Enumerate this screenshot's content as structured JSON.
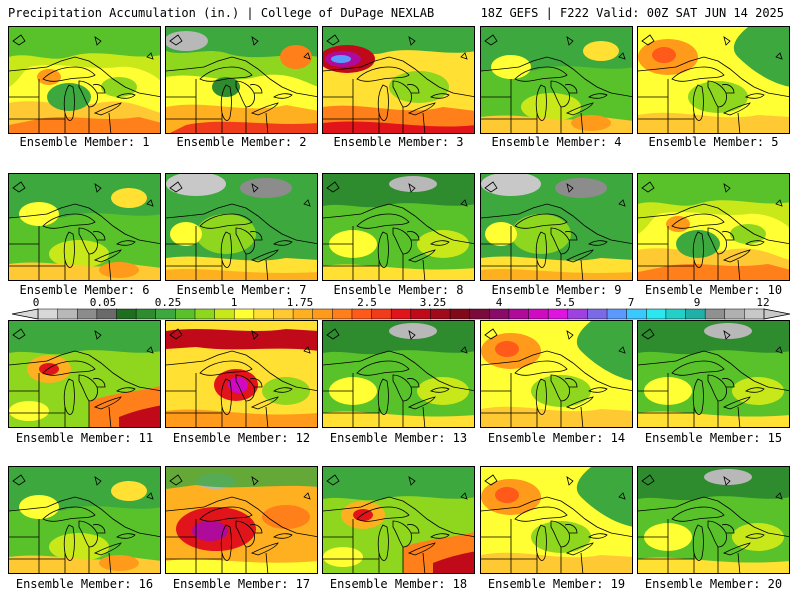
{
  "header": {
    "title_left": "Precipitation Accumulation (in.) | College of DuPage NEXLAB",
    "title_right": "18Z GEFS | F222 Valid: 00Z SAT JUN 14 2025"
  },
  "colorbar": {
    "labels": [
      "0",
      "0.05",
      "0.25",
      "1",
      "1.75",
      "2.5",
      "3.25",
      "4",
      "5.5",
      "7",
      "9",
      "12"
    ],
    "colors": [
      "#d8d8d8",
      "#b8b8b8",
      "#8c8c8c",
      "#6a6a6a",
      "#1f6e1f",
      "#2e8b2e",
      "#3da83d",
      "#59c22b",
      "#8fd61f",
      "#c8e81a",
      "#ffff33",
      "#ffe033",
      "#ffc933",
      "#ffb020",
      "#ff9a1a",
      "#ff7f1a",
      "#ff5a1a",
      "#f03c1a",
      "#e0141a",
      "#c00a1a",
      "#a00a1a",
      "#800a1a",
      "#7a0a3a",
      "#8a0a6a",
      "#b00a9a",
      "#d00ac0",
      "#e014e0",
      "#a040e0",
      "#7a6ae8",
      "#5a9aff",
      "#3ac8ff",
      "#2ae8f0",
      "#22d0c8",
      "#20b0a8",
      "#909090",
      "#b0b0b0",
      "#c8c8c8"
    ]
  },
  "members": [
    {
      "label": "Ensemble Member: 1"
    },
    {
      "label": "Ensemble Member: 2"
    },
    {
      "label": "Ensemble Member: 3"
    },
    {
      "label": "Ensemble Member: 4"
    },
    {
      "label": "Ensemble Member: 5"
    },
    {
      "label": "Ensemble Member: 6"
    },
    {
      "label": "Ensemble Member: 7"
    },
    {
      "label": "Ensemble Member: 8"
    },
    {
      "label": "Ensemble Member: 9"
    },
    {
      "label": "Ensemble Member: 10"
    },
    {
      "label": "Ensemble Member: 11"
    },
    {
      "label": "Ensemble Member: 12"
    },
    {
      "label": "Ensemble Member: 13"
    },
    {
      "label": "Ensemble Member: 14"
    },
    {
      "label": "Ensemble Member: 15"
    },
    {
      "label": "Ensemble Member: 16"
    },
    {
      "label": "Ensemble Member: 17"
    },
    {
      "label": "Ensemble Member: 18"
    },
    {
      "label": "Ensemble Member: 19"
    },
    {
      "label": "Ensemble Member: 20"
    }
  ]
}
